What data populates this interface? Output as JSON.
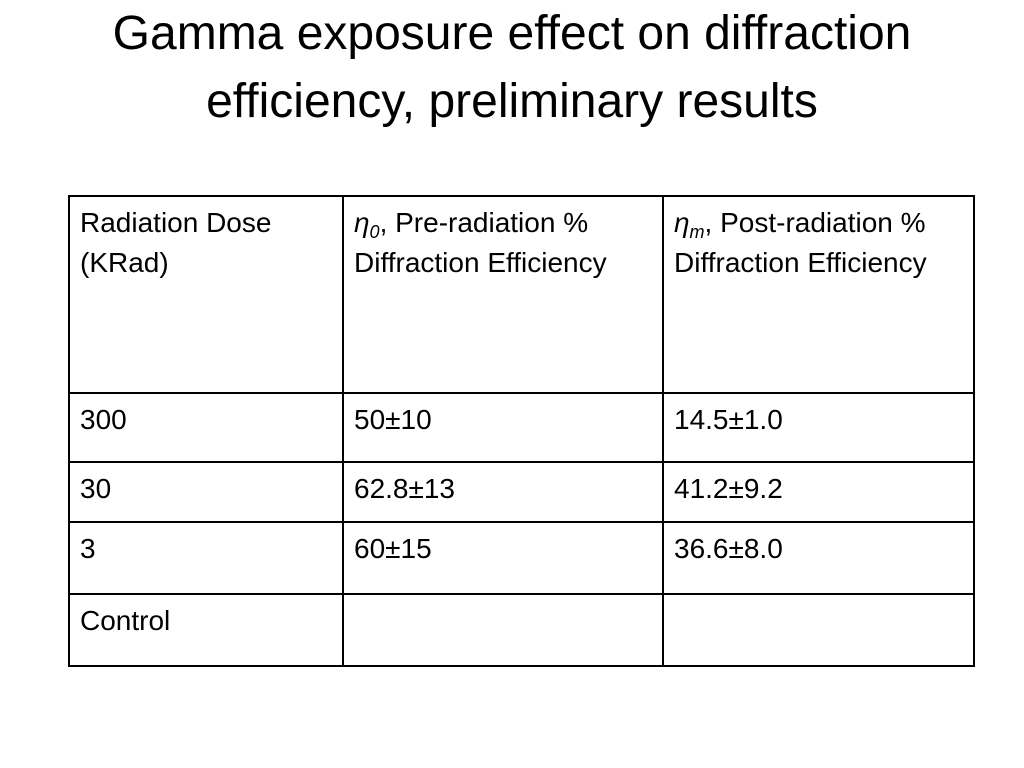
{
  "title": "Gamma exposure effect on diffraction efficiency, preliminary results",
  "table": {
    "header": [
      {
        "text": "Radiation Dose (KRad)"
      },
      {
        "symbol": "η",
        "sub": "0",
        "text": ", Pre-radiation % Diffraction Efficiency"
      },
      {
        "symbol": "η",
        "sub": "m",
        "text": ", Post-radiation % Diffraction Efficiency"
      }
    ],
    "rows": [
      [
        "300",
        "50±10",
        "14.5±1.0"
      ],
      [
        "30",
        "62.8±13",
        "41.2±9.2"
      ],
      [
        "3",
        "60±15",
        "36.6±8.0"
      ],
      [
        "Control"
      ]
    ]
  }
}
